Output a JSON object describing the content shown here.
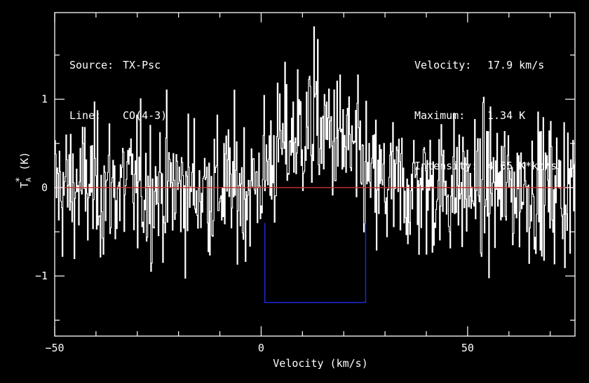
{
  "info": {
    "source_key": "Source:",
    "source_val": "TX-Psc",
    "line_key": "Line:",
    "line_val": "CO(4-3)",
    "velocity_key": "Velocity:",
    "velocity_val": "17.9 km/s",
    "maximum_key": "Maximum:",
    "maximum_val": "1.34 K",
    "intensity_key": "Intensity:",
    "intensity_val": "4.65 K*km/s"
  },
  "chart_data": {
    "type": "line",
    "xlabel": "Velocity (km/s)",
    "ylabel_main": "T",
    "ylabel_sub": "A",
    "ylabel_sup": "*",
    "ylabel_unit": " (K)",
    "xlim": [
      -50,
      76
    ],
    "ylim": [
      -1.68,
      1.98
    ],
    "x_ticks": [
      -50,
      0,
      50
    ],
    "x_tick_labels": [
      "−50",
      "0",
      "50"
    ],
    "y_ticks": [
      -1,
      0,
      1
    ],
    "y_tick_labels": [
      "−1",
      "0",
      "1"
    ],
    "baseline": 0,
    "window": {
      "x_start": 0.9,
      "x_end": 25.3,
      "y_bottom": -1.3,
      "y_top": -0.4
    },
    "spectrum": {
      "x_start": -50,
      "x_end": 76,
      "channels": 700,
      "noise_rms": 0.4,
      "line_center": 12.8,
      "line_peak": 0.65,
      "line_halfwidth": 14.5,
      "peak_value": 1.82
    },
    "colors": {
      "trace": "#ffffff",
      "baseline": "#c83030",
      "window": "#1a2adc",
      "frame": "#ffffff",
      "background": "#000000"
    }
  }
}
